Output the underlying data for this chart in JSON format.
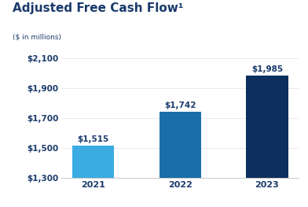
{
  "title": "Adjusted Free Cash Flow¹",
  "subtitle": "($ in millions)",
  "categories": [
    "2021",
    "2022",
    "2023"
  ],
  "values": [
    1515,
    1742,
    1985
  ],
  "bar_colors": [
    "#3aace2",
    "#1a6fa8",
    "#0d2f5e"
  ],
  "bar_labels": [
    "$1,515",
    "$1,742",
    "$1,985"
  ],
  "ylim": [
    1300,
    2100
  ],
  "yticks": [
    1300,
    1500,
    1700,
    1900,
    2100
  ],
  "ytick_labels": [
    "$1,300",
    "$1,500",
    "$1,700",
    "$1,900",
    "$2,100"
  ],
  "background_color": "#ffffff",
  "title_color": "#1a3a6b",
  "subtitle_color": "#1a3a6b",
  "axis_color": "#cccccc",
  "title_fontsize": 11,
  "subtitle_fontsize": 6.5,
  "tick_fontsize": 7.5,
  "bar_label_fontsize": 7.5,
  "xtick_color": "#1a3a6b",
  "ytick_color": "#1a3a6b"
}
